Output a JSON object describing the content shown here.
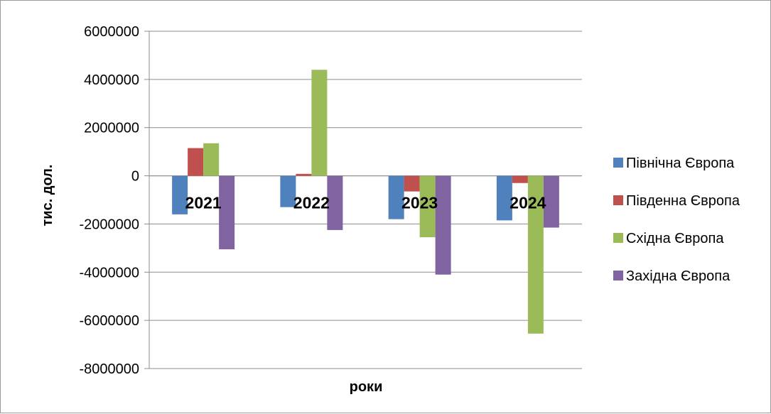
{
  "chart_data": {
    "type": "bar",
    "categories": [
      "2021",
      "2022",
      "2023",
      "2024"
    ],
    "series": [
      {
        "name": "Північна Європа",
        "color": "#4F81BD",
        "values": [
          -1600000,
          -1300000,
          -1800000,
          -1850000
        ]
      },
      {
        "name": "Південна Європа",
        "color": "#C0504D",
        "values": [
          1150000,
          80000,
          -650000,
          -300000
        ]
      },
      {
        "name": "Східна Європа",
        "color": "#9BBB59",
        "values": [
          1350000,
          4400000,
          -2550000,
          -6550000
        ]
      },
      {
        "name": "Західна Європа",
        "color": "#8064A2",
        "values": [
          -3050000,
          -2250000,
          -4100000,
          -2150000
        ]
      }
    ],
    "xlabel": "роки",
    "ylabel": "тис. дол.",
    "ylim": [
      -8000000,
      6000000
    ],
    "yticks": [
      "6000000",
      "4000000",
      "2000000",
      "0",
      "-2000000",
      "-4000000",
      "-6000000",
      "-8000000"
    ],
    "grid": true,
    "legend_position": "right"
  }
}
